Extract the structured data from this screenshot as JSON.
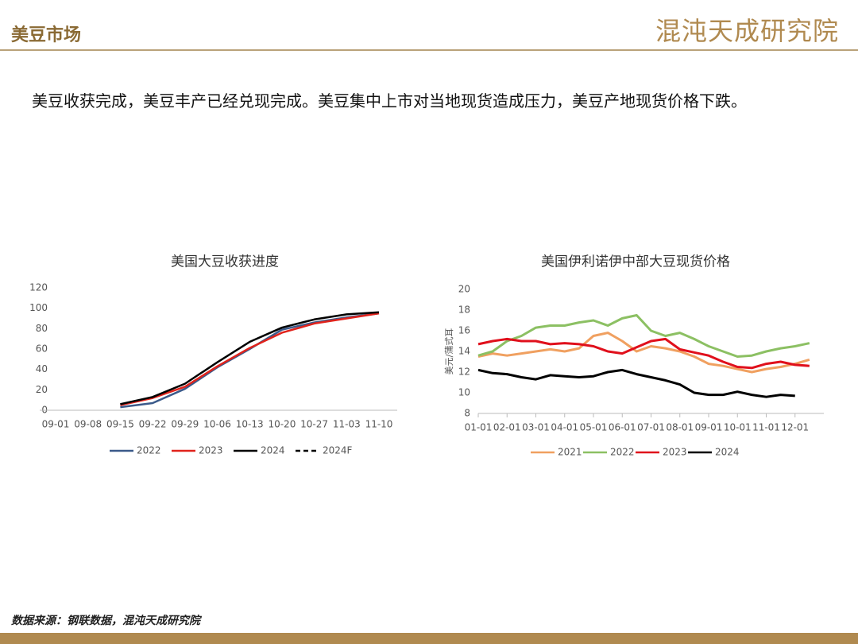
{
  "header": {
    "title": "美豆市场",
    "logo": "混沌天成研究院"
  },
  "text": "美豆收获完成，美豆丰产已经兑现完成。美豆集中上市对当地现货造成压力，美豆产地现货价格下跌。",
  "source": "数据来源：钢联数据，混沌天成研究院",
  "chart_data": [
    {
      "type": "line",
      "title": "美国大豆收获进度",
      "categories": [
        "09-01",
        "09-08",
        "09-15",
        "09-22",
        "09-29",
        "10-06",
        "10-13",
        "10-20",
        "10-27",
        "11-03",
        "11-10"
      ],
      "ylim": [
        0,
        120
      ],
      "yticks": [
        0,
        20,
        40,
        60,
        80,
        100,
        120
      ],
      "legend": "bottom",
      "series": [
        {
          "name": "2022",
          "color": "#3b5a8a",
          "values": [
            null,
            null,
            3,
            7,
            21,
            42,
            60,
            79,
            86,
            91,
            95
          ]
        },
        {
          "name": "2023",
          "color": "#e0231c",
          "values": [
            null,
            null,
            5,
            12,
            23,
            43,
            61,
            76,
            85,
            90,
            95
          ]
        },
        {
          "name": "2024",
          "color": "#000000",
          "values": [
            null,
            null,
            6,
            13,
            26,
            47,
            67,
            81,
            89,
            94,
            96
          ]
        },
        {
          "name": "2024F",
          "color": "#000000",
          "dashed": true,
          "values": [
            null,
            null,
            null,
            null,
            null,
            null,
            null,
            null,
            null,
            null,
            null
          ]
        }
      ]
    },
    {
      "type": "line",
      "title": "美国伊利诺伊中部大豆现货价格",
      "y_label": "美元/蒲式耳",
      "categories": [
        "01-01",
        null,
        "02-01",
        null,
        "03-01",
        null,
        "04-01",
        null,
        "05-01",
        null,
        "06-01",
        null,
        "07-01",
        null,
        "08-01",
        null,
        "09-01",
        null,
        "10-01",
        null,
        "11-01",
        null,
        "12-01",
        null
      ],
      "ylim": [
        8,
        20
      ],
      "yticks": [
        8,
        10,
        12,
        14,
        16,
        18,
        20
      ],
      "legend": "bottom",
      "series": [
        {
          "name": "2021",
          "color": "#f0a060",
          "values": [
            13.5,
            13.8,
            13.6,
            13.8,
            14.0,
            14.2,
            14.0,
            14.3,
            15.5,
            15.8,
            15.0,
            14.0,
            14.5,
            14.3,
            14.0,
            13.5,
            12.8,
            12.6,
            12.3,
            12.0,
            12.3,
            12.5,
            12.8,
            13.2
          ]
        },
        {
          "name": "2022",
          "color": "#8cc063",
          "values": [
            13.6,
            14.0,
            15.0,
            15.5,
            16.3,
            16.5,
            16.5,
            16.8,
            17.0,
            16.5,
            17.2,
            17.5,
            16.0,
            15.5,
            15.8,
            15.2,
            14.5,
            14.0,
            13.5,
            13.6,
            14.0,
            14.3,
            14.5,
            14.8
          ]
        },
        {
          "name": "2023",
          "color": "#e0101c",
          "values": [
            14.7,
            15.0,
            15.2,
            15.0,
            15.0,
            14.7,
            14.8,
            14.7,
            14.5,
            14.0,
            13.8,
            14.4,
            15.0,
            15.2,
            14.2,
            13.9,
            13.6,
            13.0,
            12.5,
            12.4,
            12.8,
            13.0,
            12.7,
            12.6
          ]
        },
        {
          "name": "2024",
          "color": "#000000",
          "values": [
            12.2,
            11.9,
            11.8,
            11.5,
            11.3,
            11.7,
            11.6,
            11.5,
            11.6,
            12.0,
            12.2,
            11.8,
            11.5,
            11.2,
            10.8,
            10.0,
            9.8,
            9.8,
            10.1,
            9.8,
            9.6,
            9.8,
            9.7,
            null
          ]
        }
      ]
    }
  ]
}
